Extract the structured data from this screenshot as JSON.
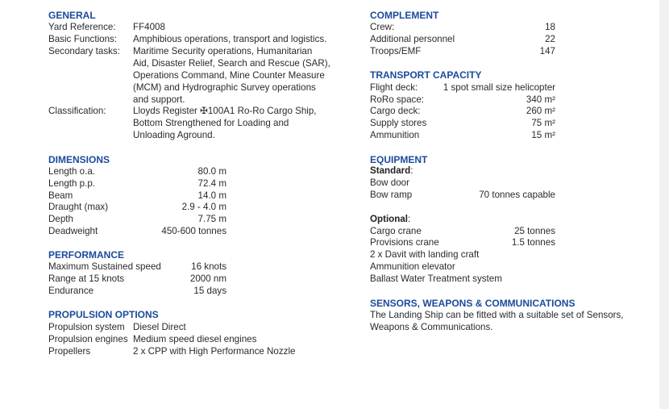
{
  "general": {
    "heading": "GENERAL",
    "yard_label": "Yard Reference:",
    "yard_value": "FF4008",
    "basic_label": "Basic Functions:",
    "basic_value": "Amphibious operations, transport and logistics.",
    "secondary_label": "Secondary tasks:",
    "secondary_lines": [
      "Maritime Security operations, Humanitarian",
      "Aid, Disaster Relief, Search and Rescue (SAR),",
      "Operations Command, Mine Counter Measure",
      "(MCM)  and Hydrographic Survey  operations",
      "and support."
    ],
    "class_label": "Classification:",
    "class_lines": [
      "Lloyds Register ✠100A1 Ro-Ro Cargo Ship,",
      "Bottom Strengthened  for Loading and",
      "Unloading Aground."
    ]
  },
  "dimensions": {
    "heading": "DIMENSIONS",
    "rows": [
      {
        "label": "Length o.a.",
        "value": "80.0 m"
      },
      {
        "label": "Length p.p.",
        "value": "72.4 m"
      },
      {
        "label": "Beam",
        "value": "14.0 m"
      },
      {
        "label": "Draught (max)",
        "value": "2.9 - 4.0 m"
      },
      {
        "label": "Depth",
        "value": "7.75 m"
      },
      {
        "label": "Deadweight",
        "value": "450-600 tonnes"
      }
    ]
  },
  "performance": {
    "heading": "PERFORMANCE",
    "rows": [
      {
        "label": "Maximum Sustained speed",
        "value": "16 knots"
      },
      {
        "label": "Range at 15 knots",
        "value": "2000 nm"
      },
      {
        "label": "Endurance",
        "value": "15 days"
      }
    ]
  },
  "propulsion": {
    "heading": "PROPULSION OPTIONS",
    "rows": [
      {
        "label": "Propulsion system",
        "value": "Diesel Direct"
      },
      {
        "label": "Propulsion engines",
        "value": "Medium speed diesel engines"
      },
      {
        "label": "Propellers",
        "value": "2 x CPP with High Performance Nozzle"
      }
    ]
  },
  "complement": {
    "heading": "COMPLEMENT",
    "rows": [
      {
        "label": "Crew:",
        "value": "18"
      },
      {
        "label": "Additional personnel",
        "value": "22"
      },
      {
        "label": "Troops/EMF",
        "value": "147"
      }
    ]
  },
  "transport": {
    "heading": "TRANSPORT CAPACITY",
    "rows": [
      {
        "label": "Flight deck:",
        "value": "1 spot small size helicopter"
      },
      {
        "label": "RoRo space:",
        "value": "340 m²"
      },
      {
        "label": "Cargo deck:",
        "value": "260 m²"
      },
      {
        "label": "Supply stores",
        "value": "75 m²"
      },
      {
        "label": "Ammunition",
        "value": "15 m²"
      }
    ]
  },
  "equipment": {
    "heading": "EQUIPMENT",
    "standard": "Standard",
    "optional": "Optional",
    "colon": ":",
    "standard_rows": [
      {
        "label": "Bow door",
        "value": ""
      },
      {
        "label": "Bow ramp",
        "value": "70 tonnes capable"
      }
    ],
    "optional_rows": [
      {
        "label": "Cargo crane",
        "value": "25 tonnes"
      },
      {
        "label": "Provisions crane",
        "value": "1.5 tonnes"
      },
      {
        "label": "2 x Davit with landing craft",
        "value": ""
      },
      {
        "label": "Ammunition elevator",
        "value": ""
      },
      {
        "label": "Ballast Water Treatment system",
        "value": ""
      }
    ]
  },
  "sensors": {
    "heading": "SENSORS, WEAPONS & COMMUNICATIONS",
    "lines": [
      "The Landing Ship can be fitted with a suitable set of Sensors,",
      "Weapons & Communications."
    ]
  }
}
